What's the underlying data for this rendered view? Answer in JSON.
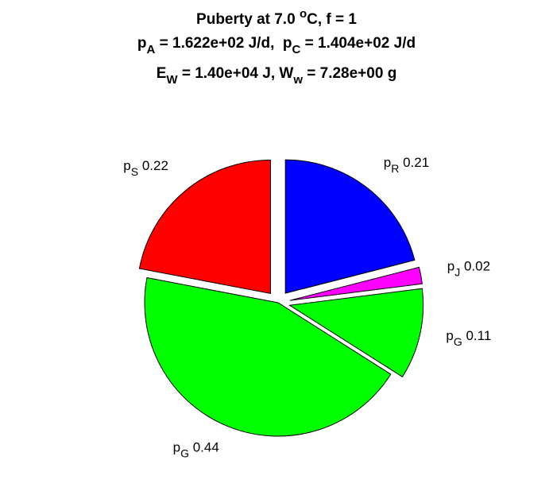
{
  "chart_data": {
    "type": "pie",
    "title": [
      [
        "Puberty at 7.0 ",
        {
          "sup": "o"
        },
        "C, f = 1"
      ],
      [
        "p",
        {
          "sub": "A"
        },
        " = 1.622e+02 J/d,  p",
        {
          "sub": "C"
        },
        " = 1.404e+02 J/d"
      ],
      [
        "E",
        {
          "sub": "W"
        },
        " = 1.40e+04 J, W",
        {
          "sub": "w"
        },
        " = 7.28e+00 g"
      ]
    ],
    "labels": [
      {
        "text": "p",
        "sub": "R"
      },
      {
        "text": "p",
        "sub": "J"
      },
      {
        "text": "p",
        "sub": "G"
      },
      {
        "text": "p",
        "sub": "G"
      },
      {
        "text": "p",
        "sub": "S"
      }
    ],
    "values": [
      0.21,
      0.02,
      0.11,
      0.44,
      0.22
    ],
    "colors": [
      "#0000ff",
      "#ff00ff",
      "#00ff00",
      "#00ff00",
      "#ff0000"
    ],
    "explode": [
      true,
      true,
      true,
      false,
      true
    ]
  }
}
